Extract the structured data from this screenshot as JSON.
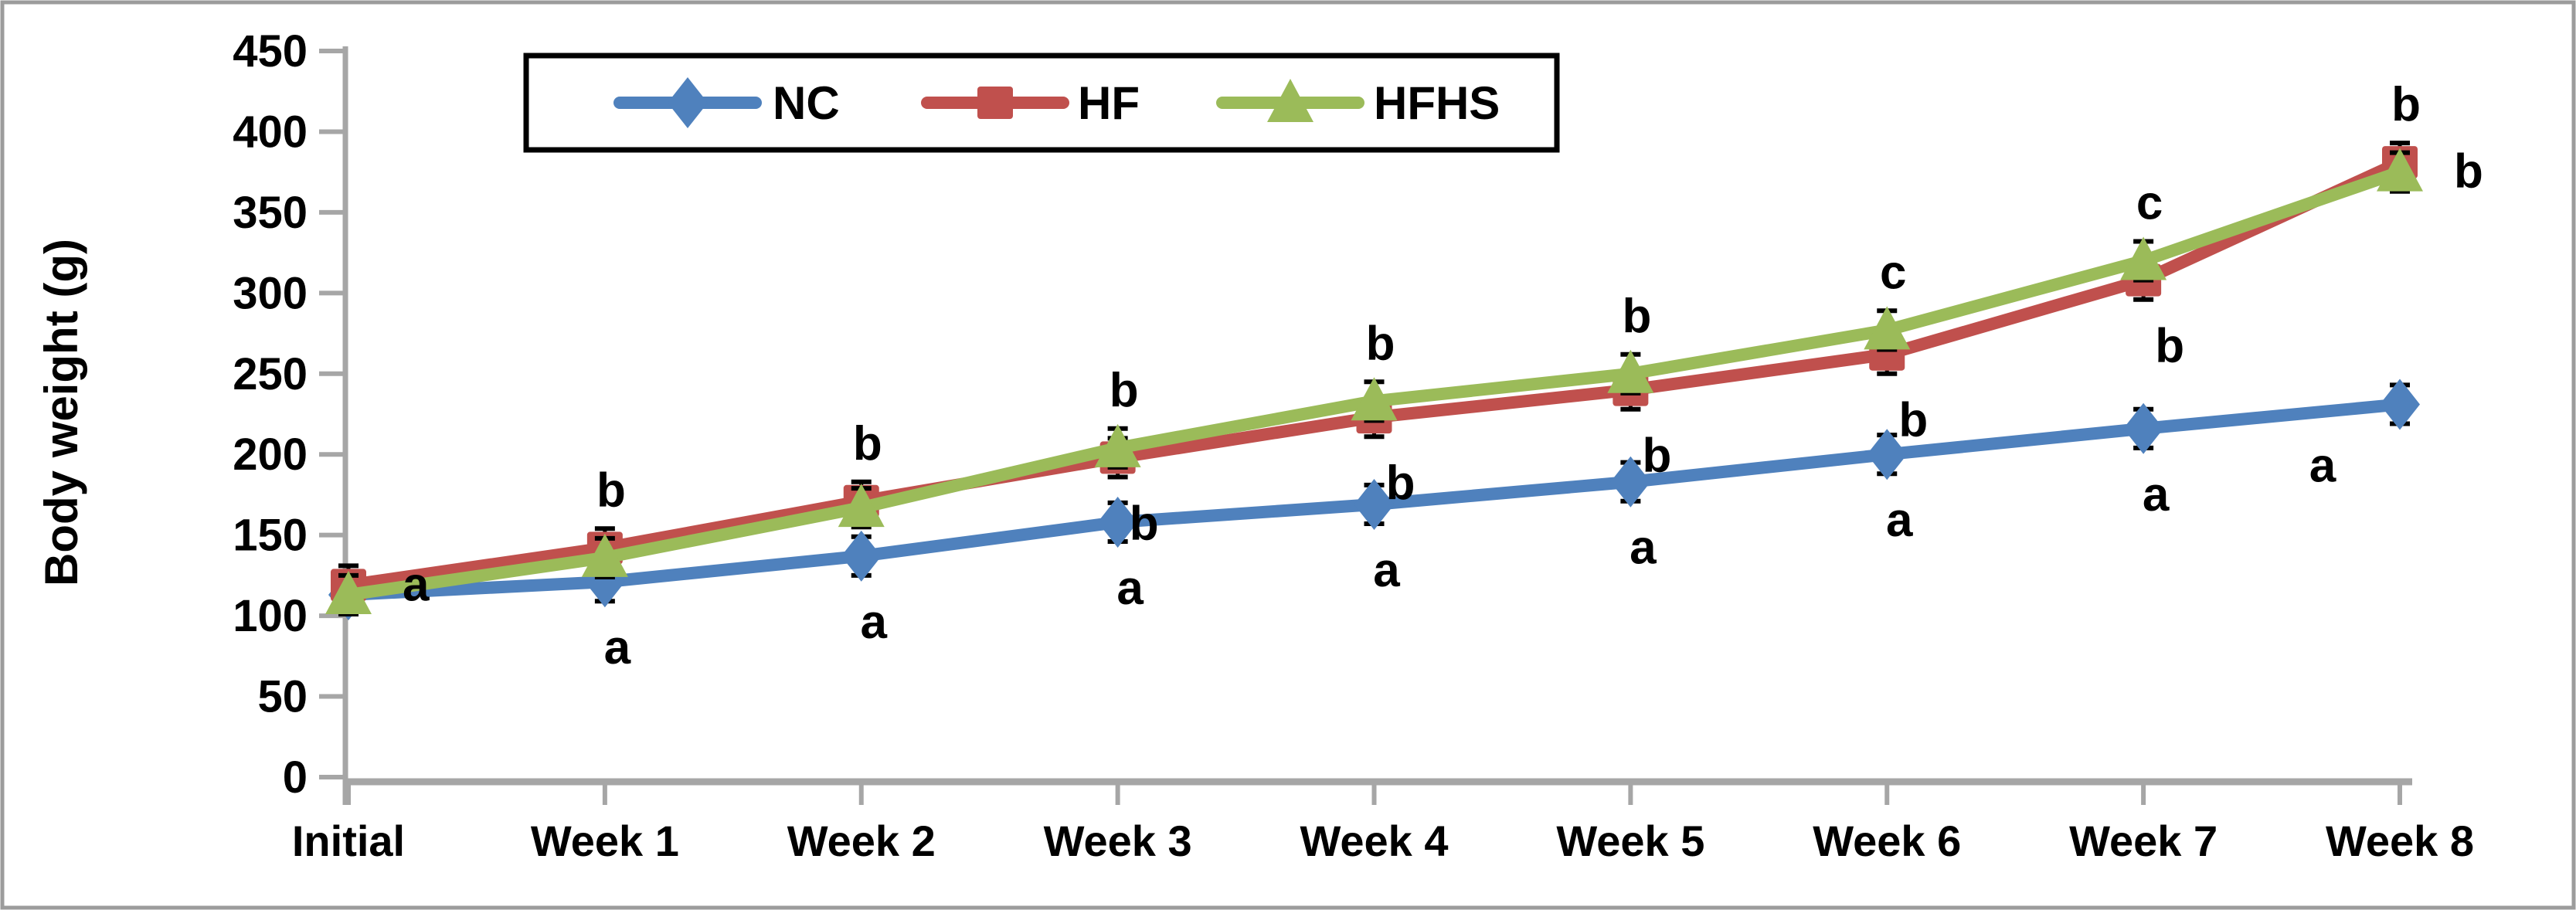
{
  "figure": {
    "background": "#ffffff",
    "border_color": "#9c9c9c",
    "axis_color": "#a6a6a6",
    "text_color": "#000000"
  },
  "chart_data": {
    "type": "line",
    "title": "",
    "xlabel": "",
    "ylabel": "Body weight (g)",
    "ylim": [
      0,
      450
    ],
    "ytick_step": 50,
    "yticks": [
      450,
      400,
      350,
      300,
      250,
      200,
      150,
      100,
      50,
      0
    ],
    "categories": [
      "Initial",
      "Week 1",
      "Week 2",
      "Week 3",
      "Week 4",
      "Week 5",
      "Week 6",
      "Week 7",
      "Week 8"
    ],
    "grid": false,
    "legend_position": "top-center",
    "error_bar_g": 12,
    "series": [
      {
        "name": "NC",
        "color": "#4F81BD",
        "marker": "diamond",
        "values": [
          113,
          121,
          137,
          158,
          169,
          183,
          200,
          216,
          231
        ]
      },
      {
        "name": "HF",
        "color": "#C0504D",
        "marker": "square",
        "values": [
          119,
          142,
          171,
          198,
          223,
          240,
          262,
          308,
          381
        ]
      },
      {
        "name": "HFHS",
        "color": "#9BBB59",
        "marker": "triangle",
        "values": [
          113,
          136,
          167,
          204,
          233,
          250,
          277,
          320,
          375
        ]
      }
    ],
    "significance_labels": [
      {
        "category": "Initial",
        "text": "a",
        "series": "HF",
        "placement": "right"
      },
      {
        "category": "Week 1",
        "text": "b",
        "series": "HF",
        "placement": "above"
      },
      {
        "category": "Week 1",
        "text": "a",
        "series": "NC",
        "placement": "below"
      },
      {
        "category": "Week 2",
        "text": "b",
        "series": "HF",
        "placement": "above"
      },
      {
        "category": "Week 2",
        "text": "a",
        "series": "NC",
        "placement": "below"
      },
      {
        "category": "Week 3",
        "text": "b",
        "series": "HFHS",
        "placement": "above"
      },
      {
        "category": "Week 3",
        "text": "b",
        "series": "HF",
        "placement": "below"
      },
      {
        "category": "Week 3",
        "text": "a",
        "series": "NC",
        "placement": "below"
      },
      {
        "category": "Week 4",
        "text": "b",
        "series": "HFHS",
        "placement": "above"
      },
      {
        "category": "Week 4",
        "text": "b",
        "series": "HF",
        "placement": "below"
      },
      {
        "category": "Week 4",
        "text": "a",
        "series": "NC",
        "placement": "below"
      },
      {
        "category": "Week 5",
        "text": "b",
        "series": "HFHS",
        "placement": "above"
      },
      {
        "category": "Week 5",
        "text": "b",
        "series": "HF",
        "placement": "below"
      },
      {
        "category": "Week 5",
        "text": "a",
        "series": "NC",
        "placement": "below"
      },
      {
        "category": "Week 6",
        "text": "c",
        "series": "HFHS",
        "placement": "above"
      },
      {
        "category": "Week 6",
        "text": "b",
        "series": "HF",
        "placement": "below"
      },
      {
        "category": "Week 6",
        "text": "a",
        "series": "NC",
        "placement": "below"
      },
      {
        "category": "Week 7",
        "text": "c",
        "series": "HFHS",
        "placement": "above"
      },
      {
        "category": "Week 7",
        "text": "b",
        "series": "HF",
        "placement": "below"
      },
      {
        "category": "Week 7",
        "text": "a",
        "series": "NC",
        "placement": "below"
      },
      {
        "category": "Week 8",
        "text": "b",
        "series": "HF",
        "placement": "above"
      },
      {
        "category": "Week 8",
        "text": "b",
        "series": "HFHS",
        "placement": "right"
      },
      {
        "category": "Week 8",
        "text": "a",
        "series": "NC",
        "placement": "below-left"
      }
    ],
    "legend_entries": [
      "NC",
      "HF",
      "HFHS"
    ]
  }
}
